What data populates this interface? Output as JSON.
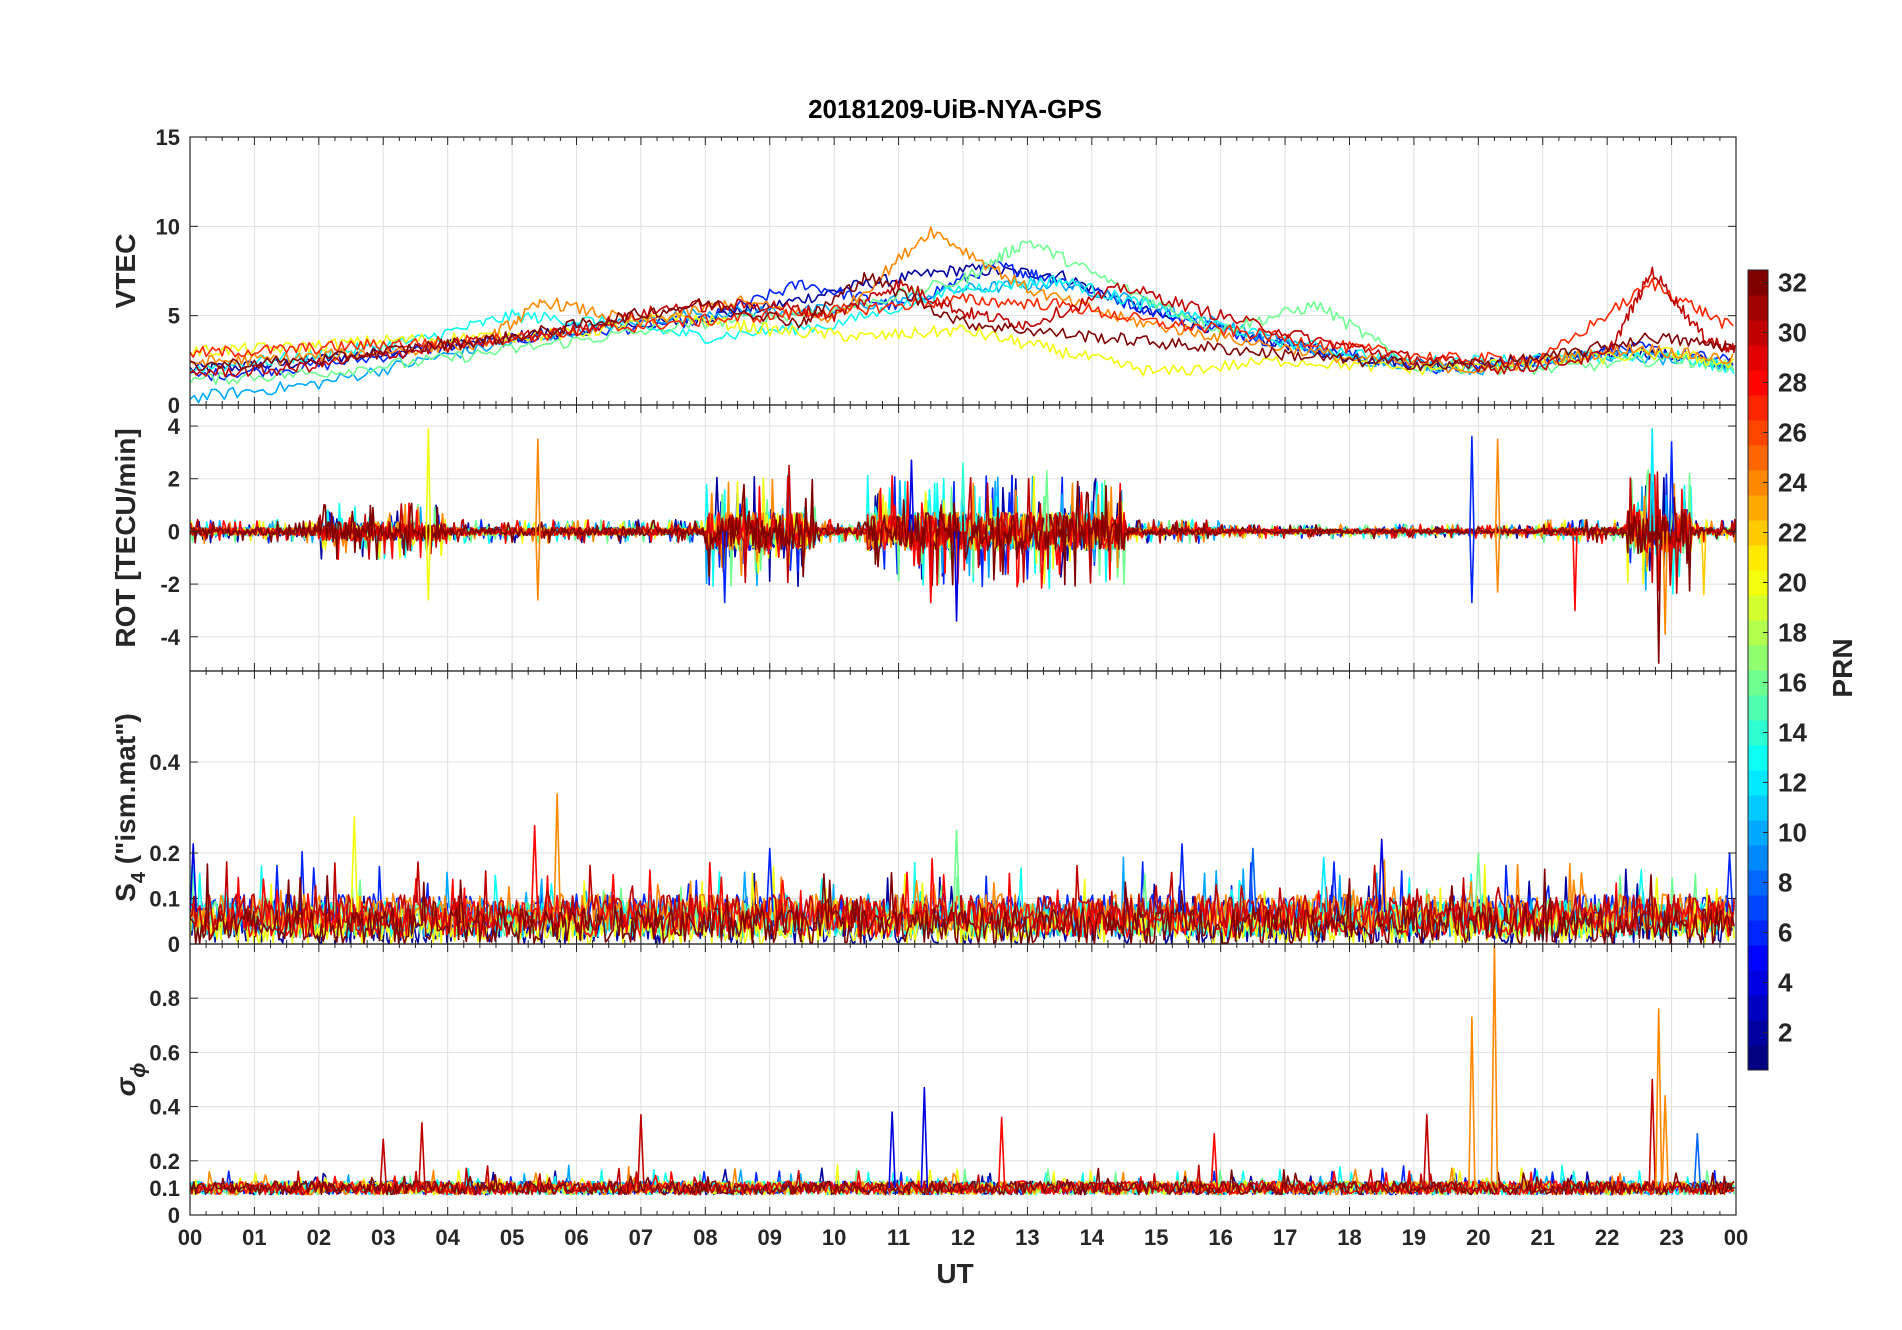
{
  "chart_data": {
    "type": "line",
    "title": "20181209-UiB-NYA-GPS",
    "xlabel": "UT",
    "x_ticks": [
      "00",
      "01",
      "02",
      "03",
      "04",
      "05",
      "06",
      "07",
      "08",
      "09",
      "10",
      "11",
      "12",
      "13",
      "14",
      "15",
      "16",
      "17",
      "18",
      "19",
      "20",
      "21",
      "22",
      "23",
      "00"
    ],
    "xlim_hours": [
      0,
      24
    ],
    "grid": true,
    "colormap": "jet",
    "colorbar": {
      "label": "PRN",
      "range": [
        1,
        32
      ],
      "ticks": [
        "2",
        "4",
        "6",
        "8",
        "10",
        "12",
        "14",
        "16",
        "18",
        "20",
        "22",
        "24",
        "26",
        "28",
        "30",
        "32"
      ],
      "placement": "right"
    },
    "panels": [
      {
        "id": "vtec",
        "ylabel": "VTEC",
        "ylim": [
          0,
          15
        ],
        "yticks": [
          0,
          5,
          10,
          15
        ],
        "ytick_labels": [
          "0",
          "5",
          "10",
          "15"
        ],
        "series": [
          {
            "prn": 2,
            "t": [
              0,
              1.5,
              3,
              4.5,
              6,
              7.5,
              9,
              10.5,
              12,
              13.5,
              15,
              16.5,
              18,
              19.5,
              21,
              22.5,
              24
            ],
            "v": [
              2.0,
              2.3,
              3.0,
              3.5,
              4.3,
              4.6,
              5.5,
              6.8,
              7.6,
              7.3,
              5.0,
              3.8,
              2.7,
              2.2,
              2.5,
              3.0,
              2.2
            ]
          },
          {
            "prn": 6,
            "t": [
              0,
              2,
              4,
              6,
              8,
              9.5,
              11,
              12.5,
              13.5,
              15,
              16.5,
              18,
              19.5,
              21,
              22.5,
              24
            ],
            "v": [
              1.6,
              2.2,
              3.3,
              4.0,
              4.8,
              6.8,
              5.5,
              7.8,
              7.0,
              5.2,
              3.8,
              2.8,
              2.0,
              2.6,
              3.2,
              2.4
            ]
          },
          {
            "prn": 10,
            "t": [
              0,
              2,
              4,
              6,
              8,
              10,
              12,
              13.5,
              15,
              16.5,
              18,
              20,
              22,
              24
            ],
            "v": [
              0.4,
              1.2,
              2.8,
              4.2,
              5.2,
              5.3,
              6.5,
              6.8,
              5.6,
              4.0,
              2.6,
              2.0,
              2.8,
              2.2
            ]
          },
          {
            "prn": 13,
            "t": [
              0,
              2,
              3.5,
              5,
              6.5,
              8,
              10,
              12,
              13.5,
              15,
              17,
              19,
              21,
              23,
              24
            ],
            "v": [
              2.0,
              2.8,
              3.6,
              5.0,
              4.6,
              3.8,
              4.5,
              6.5,
              7.0,
              5.4,
              3.5,
              2.4,
              2.6,
              2.8,
              2.0
            ]
          },
          {
            "prn": 16,
            "t": [
              0,
              2,
              4,
              6,
              8,
              10,
              12,
              13,
              14.5,
              16,
              17.5,
              19,
              21,
              23,
              24
            ],
            "v": [
              1.4,
              1.8,
              2.6,
              3.6,
              4.6,
              5.3,
              7.0,
              9.2,
              6.5,
              4.2,
              5.6,
              2.2,
              2.0,
              2.6,
              2.1
            ]
          },
          {
            "prn": 20,
            "t": [
              0,
              1.5,
              3,
              4.5,
              6,
              7.5,
              9,
              10.5,
              12,
              13.5,
              15,
              17,
              19,
              21,
              23,
              24
            ],
            "v": [
              3.0,
              3.2,
              3.6,
              3.8,
              4.0,
              5.0,
              4.2,
              3.8,
              4.2,
              3.0,
              1.8,
              2.5,
              2.0,
              2.4,
              2.9,
              2.2
            ]
          },
          {
            "prn": 24,
            "t": [
              0,
              1.5,
              3,
              4.5,
              5.5,
              7,
              8.5,
              10,
              11.5,
              13,
              14.5,
              16,
              18,
              20,
              21,
              22.5,
              24
            ],
            "v": [
              2.4,
              2.6,
              3.0,
              3.4,
              5.8,
              4.6,
              5.8,
              4.8,
              9.8,
              6.5,
              4.8,
              3.8,
              2.6,
              2.0,
              2.5,
              3.2,
              2.5
            ]
          },
          {
            "prn": 27,
            "t": [
              0,
              1.5,
              3,
              4.5,
              6,
              7.5,
              9,
              10.5,
              12,
              13.5,
              15,
              16.5,
              18,
              19.5,
              21,
              22.7,
              24
            ],
            "v": [
              2.9,
              3.1,
              3.4,
              3.6,
              4.1,
              4.6,
              5.0,
              5.4,
              5.9,
              5.6,
              4.6,
              4.0,
              3.2,
              2.6,
              2.6,
              6.8,
              4.2
            ]
          },
          {
            "prn": 30,
            "t": [
              0,
              1.5,
              3,
              4.5,
              6,
              7.5,
              9,
              10,
              11,
              12,
              13,
              14.5,
              16,
              17.5,
              19,
              20.5,
              22,
              22.7,
              23.5,
              24
            ],
            "v": [
              1.8,
              2.0,
              2.8,
              3.5,
              4.2,
              5.5,
              5.6,
              5.0,
              6.8,
              5.2,
              4.5,
              6.6,
              5.0,
              3.6,
              2.6,
              2.0,
              2.8,
              7.5,
              3.8,
              3.0
            ]
          },
          {
            "prn": 32,
            "t": [
              0,
              2,
              3.5,
              5,
              6.5,
              8,
              9.5,
              10.5,
              12,
              13.5,
              15,
              16.5,
              18,
              19.5,
              21,
              22.7,
              24
            ],
            "v": [
              2.2,
              2.5,
              3.2,
              3.8,
              4.8,
              5.7,
              4.6,
              7.2,
              4.6,
              4.0,
              3.5,
              3.0,
              2.5,
              2.2,
              2.6,
              3.8,
              3.2
            ]
          }
        ]
      },
      {
        "id": "rot",
        "ylabel": "ROT [TECU/min]",
        "ylim": [
          -5.3,
          4.8
        ],
        "yticks": [
          -4,
          -2,
          0,
          2,
          4
        ],
        "ytick_labels": [
          "-4",
          "-2",
          "0",
          "2",
          "4"
        ],
        "spikes": [
          {
            "t": 3.7,
            "v": 3.9,
            "prn": 20
          },
          {
            "t": 3.7,
            "v": -2.6,
            "prn": 20
          },
          {
            "t": 5.4,
            "v": 3.5,
            "prn": 24
          },
          {
            "t": 5.4,
            "v": -2.6,
            "prn": 24
          },
          {
            "t": 8.3,
            "v": -2.7,
            "prn": 6
          },
          {
            "t": 9.3,
            "v": 2.5,
            "prn": 30
          },
          {
            "t": 11.5,
            "v": -2.7,
            "prn": 28
          },
          {
            "t": 11.2,
            "v": 2.7,
            "prn": 4
          },
          {
            "t": 11.9,
            "v": -3.4,
            "prn": 4
          },
          {
            "t": 12.0,
            "v": 2.6,
            "prn": 14
          },
          {
            "t": 13.3,
            "v": 2.3,
            "prn": 16
          },
          {
            "t": 19.9,
            "v": 3.6,
            "prn": 6
          },
          {
            "t": 19.9,
            "v": -2.7,
            "prn": 6
          },
          {
            "t": 20.3,
            "v": 3.5,
            "prn": 24
          },
          {
            "t": 20.3,
            "v": -2.3,
            "prn": 24
          },
          {
            "t": 21.5,
            "v": -3.0,
            "prn": 28
          },
          {
            "t": 22.7,
            "v": 3.9,
            "prn": 12
          },
          {
            "t": 22.8,
            "v": -5.0,
            "prn": 32
          },
          {
            "t": 22.9,
            "v": -3.9,
            "prn": 24
          },
          {
            "t": 23.0,
            "v": 3.4,
            "prn": 6
          },
          {
            "t": 23.5,
            "v": -2.4,
            "prn": 22
          }
        ]
      },
      {
        "id": "s4",
        "ylabel": "S",
        "ylabel_subscript": "4",
        "ylabel_suffix": " (\"ism.mat\")",
        "ylim": [
          0,
          0.6
        ],
        "yticks": [
          0,
          0.1,
          0.2,
          0.4
        ],
        "ytick_labels": [
          "0",
          "0.1",
          "0.2",
          "0.4"
        ],
        "baseline": 0.07,
        "spikes": [
          {
            "t": 0.05,
            "v": 0.22,
            "prn": 4
          },
          {
            "t": 2.55,
            "v": 0.28,
            "prn": 20
          },
          {
            "t": 5.35,
            "v": 0.26,
            "prn": 28
          },
          {
            "t": 5.7,
            "v": 0.33,
            "prn": 24
          },
          {
            "t": 9.0,
            "v": 0.21,
            "prn": 6
          },
          {
            "t": 9.2,
            "v": 0.14,
            "prn": 28
          },
          {
            "t": 11.9,
            "v": 0.25,
            "prn": 16
          },
          {
            "t": 15.4,
            "v": 0.22,
            "prn": 6
          },
          {
            "t": 16.5,
            "v": 0.21,
            "prn": 8
          },
          {
            "t": 17.6,
            "v": 0.19,
            "prn": 12
          },
          {
            "t": 18.5,
            "v": 0.23,
            "prn": 4
          },
          {
            "t": 20.0,
            "v": 0.2,
            "prn": 16
          },
          {
            "t": 23.9,
            "v": 0.2,
            "prn": 6
          }
        ]
      },
      {
        "id": "sigma_phi",
        "ylabel": "σ",
        "ylabel_subscript": "ϕ",
        "ylim": [
          0,
          1.0
        ],
        "yticks": [
          0,
          0.1,
          0.2,
          0.4,
          0.6,
          0.8
        ],
        "ytick_labels": [
          "0",
          "0.1",
          "0.2",
          "0.4",
          "0.6",
          "0.8"
        ],
        "baseline": 0.1,
        "spikes": [
          {
            "t": 3.0,
            "v": 0.28,
            "prn": 30
          },
          {
            "t": 3.6,
            "v": 0.34,
            "prn": 30
          },
          {
            "t": 7.0,
            "v": 0.37,
            "prn": 30
          },
          {
            "t": 10.9,
            "v": 0.38,
            "prn": 4
          },
          {
            "t": 11.4,
            "v": 0.47,
            "prn": 4
          },
          {
            "t": 12.6,
            "v": 0.36,
            "prn": 28
          },
          {
            "t": 15.9,
            "v": 0.3,
            "prn": 28
          },
          {
            "t": 19.2,
            "v": 0.37,
            "prn": 30
          },
          {
            "t": 19.9,
            "v": 0.73,
            "prn": 24
          },
          {
            "t": 20.25,
            "v": 1.0,
            "prn": 24
          },
          {
            "t": 22.7,
            "v": 0.5,
            "prn": 30
          },
          {
            "t": 22.8,
            "v": 0.76,
            "prn": 24
          },
          {
            "t": 22.9,
            "v": 0.44,
            "prn": 24
          },
          {
            "t": 23.4,
            "v": 0.3,
            "prn": 8
          }
        ]
      }
    ]
  }
}
